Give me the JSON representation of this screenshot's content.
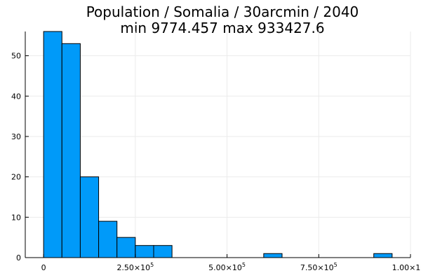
{
  "chart_data": {
    "type": "bar",
    "title_line1": "Population / Somalia / 30arcmin / 2040",
    "title_line2": "min 9774.457  max 933427.6",
    "xlabel": "",
    "ylabel": "",
    "bin_width": 50000,
    "bins": [
      {
        "start": 0,
        "end": 50000,
        "count": 56
      },
      {
        "start": 50000,
        "end": 100000,
        "count": 53
      },
      {
        "start": 100000,
        "end": 150000,
        "count": 20
      },
      {
        "start": 150000,
        "end": 200000,
        "count": 9
      },
      {
        "start": 200000,
        "end": 250000,
        "count": 5
      },
      {
        "start": 250000,
        "end": 300000,
        "count": 3
      },
      {
        "start": 300000,
        "end": 350000,
        "count": 3
      },
      {
        "start": 600000,
        "end": 650000,
        "count": 1
      },
      {
        "start": 900000,
        "end": 950000,
        "count": 1
      }
    ],
    "xlim": [
      -50000,
      1000000
    ],
    "ylim": [
      0,
      56
    ],
    "x_ticks": [
      {
        "value": 0,
        "mantissa": "0",
        "exponent": ""
      },
      {
        "value": 250000,
        "mantissa": "2.50×10",
        "exponent": "5"
      },
      {
        "value": 500000,
        "mantissa": "5.00×10",
        "exponent": "5"
      },
      {
        "value": 750000,
        "mantissa": "7.50×10",
        "exponent": "5"
      },
      {
        "value": 1000000,
        "mantissa": "1.00×10",
        "exponent": "6"
      }
    ],
    "y_ticks": [
      {
        "value": 0,
        "label": "0"
      },
      {
        "value": 10,
        "label": "10"
      },
      {
        "value": 20,
        "label": "20"
      },
      {
        "value": 30,
        "label": "30"
      },
      {
        "value": 40,
        "label": "40"
      },
      {
        "value": 50,
        "label": "50"
      }
    ],
    "grid": true,
    "legend": "none",
    "bar_color": "#009af9",
    "edge_color": "#000000"
  }
}
